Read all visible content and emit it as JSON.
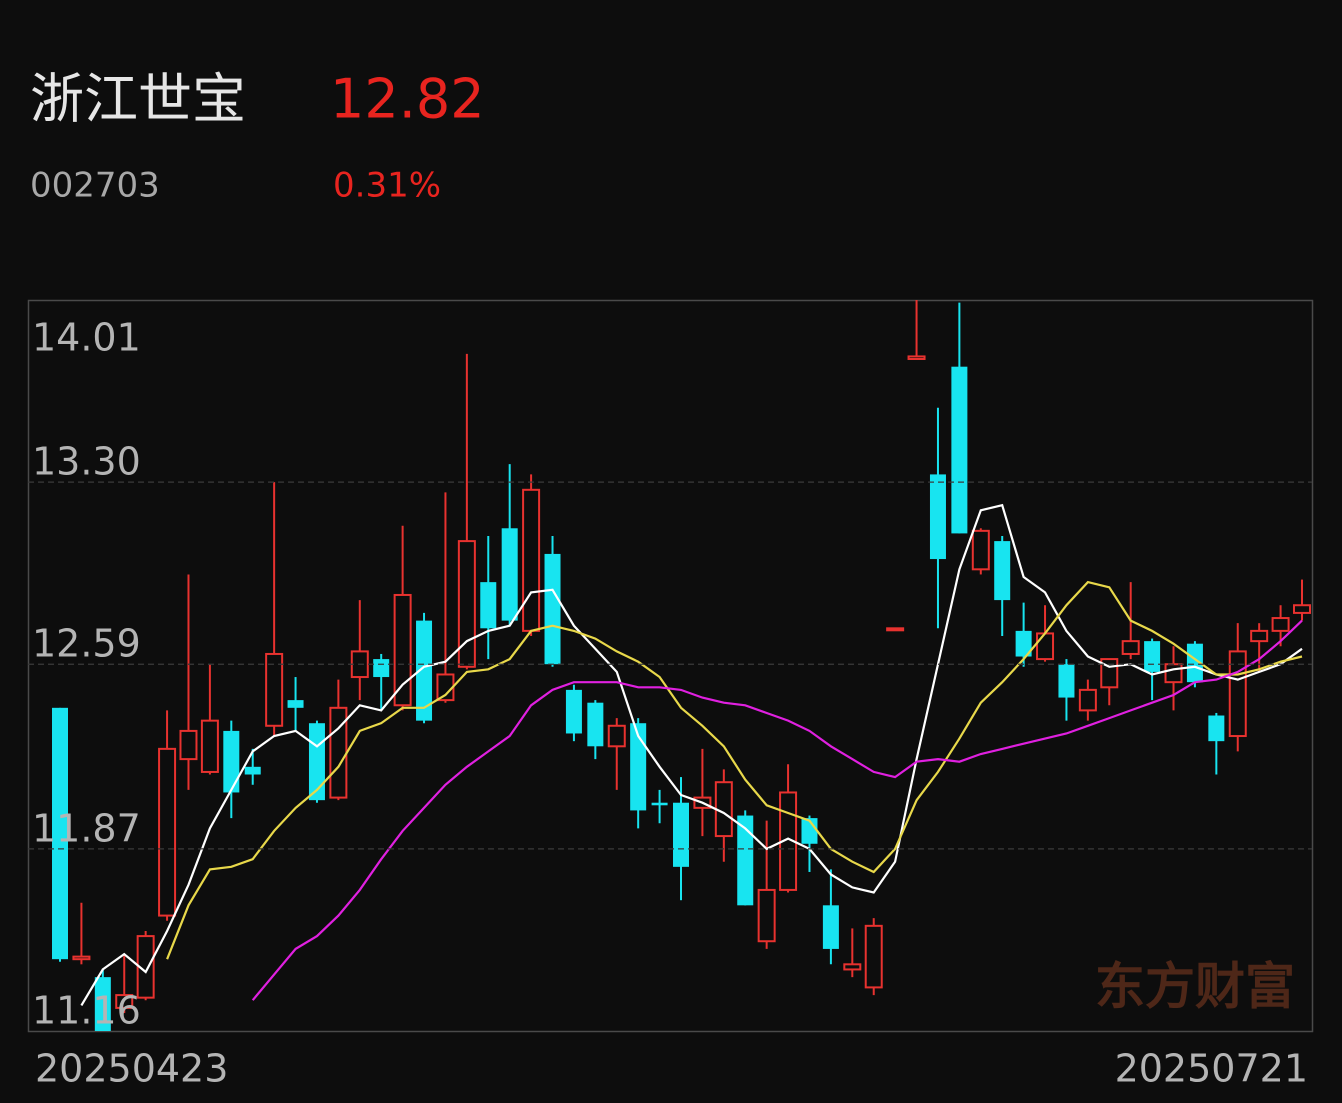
{
  "header": {
    "name": "浙江世宝",
    "price": 12.82,
    "code": "002703",
    "change": "0.31%"
  },
  "chart_data": {
    "type": "candlestick",
    "categories": [
      "20250423",
      null,
      null,
      null,
      null,
      null,
      null,
      null,
      null,
      null,
      null,
      null,
      null,
      null,
      null,
      null,
      null,
      null,
      null,
      null,
      null,
      null,
      null,
      null,
      null,
      null,
      null,
      null,
      null,
      null,
      null,
      null,
      null,
      null,
      null,
      null,
      null,
      null,
      null,
      null,
      null,
      null,
      null,
      null,
      null,
      null,
      null,
      null,
      null,
      null,
      null,
      null,
      null,
      null,
      null,
      null,
      null,
      null,
      "20250721"
    ],
    "open": [
      12.42,
      11.44,
      11.37,
      11.25,
      11.29,
      11.61,
      12.22,
      12.17,
      12.33,
      12.19,
      12.35,
      12.45,
      12.36,
      12.07,
      12.54,
      12.61,
      12.43,
      12.76,
      12.45,
      12.58,
      12.91,
      13.12,
      12.72,
      13.02,
      12.49,
      12.44,
      12.27,
      12.36,
      12.05,
      12.05,
      12.03,
      11.92,
      12.0,
      11.51,
      11.71,
      11.99,
      11.65,
      11.4,
      11.33,
      12.73,
      13.78,
      13.33,
      13.75,
      12.96,
      13.07,
      12.72,
      12.61,
      12.59,
      12.41,
      12.5,
      12.63,
      12.68,
      12.52,
      12.67,
      12.39,
      12.31,
      12.68,
      12.72,
      12.79
    ],
    "high": [
      12.42,
      11.66,
      11.4,
      11.46,
      11.55,
      12.41,
      12.94,
      12.59,
      12.37,
      12.26,
      13.3,
      12.54,
      12.37,
      12.53,
      12.84,
      12.63,
      13.13,
      12.79,
      13.26,
      13.8,
      13.09,
      13.37,
      13.33,
      13.09,
      12.51,
      12.45,
      12.38,
      12.38,
      12.1,
      12.15,
      12.26,
      12.18,
      12.02,
      11.98,
      12.2,
      12.0,
      11.79,
      11.56,
      11.6,
      12.73,
      14.01,
      13.59,
      14.0,
      13.12,
      13.09,
      12.83,
      12.82,
      12.61,
      12.53,
      12.61,
      12.91,
      12.69,
      12.66,
      12.68,
      12.4,
      12.75,
      12.75,
      12.82,
      12.92
    ],
    "low": [
      11.43,
      11.42,
      11.1,
      11.23,
      11.28,
      11.59,
      12.1,
      12.16,
      11.99,
      12.12,
      12.31,
      12.33,
      12.05,
      12.06,
      12.45,
      12.41,
      12.41,
      12.36,
      12.44,
      12.57,
      12.61,
      12.74,
      12.7,
      12.58,
      12.29,
      12.22,
      12.1,
      11.95,
      11.97,
      11.67,
      11.92,
      11.82,
      11.65,
      11.48,
      11.7,
      11.78,
      11.42,
      11.37,
      11.3,
      12.73,
      13.78,
      12.73,
      13.1,
      12.94,
      12.7,
      12.58,
      12.6,
      12.37,
      12.37,
      12.43,
      12.61,
      12.45,
      12.41,
      12.5,
      12.16,
      12.25,
      12.56,
      12.66,
      12.76
    ],
    "close": [
      11.44,
      11.45,
      11.13,
      11.3,
      11.53,
      12.26,
      12.33,
      12.37,
      12.09,
      12.16,
      12.63,
      12.42,
      12.06,
      12.42,
      12.64,
      12.54,
      12.86,
      12.37,
      12.55,
      13.07,
      12.73,
      12.76,
      13.27,
      12.59,
      12.32,
      12.27,
      12.35,
      12.02,
      12.04,
      11.8,
      12.07,
      12.13,
      11.65,
      11.71,
      12.09,
      11.89,
      11.48,
      11.42,
      11.57,
      12.73,
      13.79,
      13.0,
      13.1,
      13.11,
      12.84,
      12.62,
      12.71,
      12.46,
      12.49,
      12.61,
      12.68,
      12.56,
      12.59,
      12.52,
      12.29,
      12.64,
      12.72,
      12.77,
      12.82
    ],
    "up_color": "#e8322f",
    "down_color": "#18e4f0",
    "series": [
      {
        "type": "line",
        "color": "#ffffff",
        "values": [
          null,
          11.26,
          11.4,
          11.46,
          11.39,
          11.55,
          11.73,
          11.95,
          12.1,
          12.25,
          12.31,
          12.33,
          12.27,
          12.34,
          12.43,
          12.41,
          12.51,
          12.58,
          12.6,
          12.68,
          12.72,
          12.74,
          12.87,
          12.88,
          12.74,
          12.65,
          12.56,
          12.31,
          12.19,
          12.08,
          12.05,
          12.01,
          11.95,
          11.87,
          11.91,
          11.87,
          11.77,
          11.72,
          11.7,
          11.82,
          12.22,
          12.59,
          12.96,
          13.19,
          13.21,
          12.93,
          12.87,
          12.72,
          12.62,
          12.58,
          12.59,
          12.55,
          12.57,
          12.58,
          12.55,
          12.53,
          12.56,
          12.59,
          12.65
        ]
      },
      {
        "type": "line",
        "color": "#e8d84a",
        "values": [
          null,
          null,
          null,
          null,
          null,
          11.44,
          11.65,
          11.79,
          11.8,
          11.83,
          11.94,
          12.03,
          12.1,
          12.19,
          12.33,
          12.36,
          12.42,
          12.42,
          12.47,
          12.56,
          12.57,
          12.61,
          12.72,
          12.74,
          12.72,
          12.69,
          12.64,
          12.6,
          12.54,
          12.42,
          12.35,
          12.27,
          12.14,
          12.04,
          12.01,
          11.98,
          11.87,
          11.82,
          11.78,
          11.87,
          12.06,
          12.17,
          12.3,
          12.44,
          12.52,
          12.61,
          12.71,
          12.82,
          12.91,
          12.89,
          12.76,
          12.72,
          12.67,
          12.61,
          12.55,
          12.55,
          12.57,
          12.6,
          12.62
        ]
      },
      {
        "type": "line",
        "color": "#e020e0",
        "values": [
          null,
          null,
          null,
          null,
          null,
          null,
          null,
          null,
          null,
          11.28,
          11.38,
          11.48,
          11.53,
          11.61,
          11.71,
          11.83,
          11.94,
          12.03,
          12.12,
          12.19,
          12.25,
          12.31,
          12.43,
          12.49,
          12.52,
          12.52,
          12.52,
          12.5,
          12.5,
          12.49,
          12.46,
          12.44,
          12.43,
          12.4,
          12.37,
          12.33,
          12.27,
          12.22,
          12.17,
          12.15,
          12.21,
          12.22,
          12.21,
          12.24,
          12.26,
          12.28,
          12.3,
          12.32,
          12.35,
          12.38,
          12.41,
          12.44,
          12.47,
          12.52,
          12.53,
          12.56,
          12.61,
          12.68,
          12.76
        ]
      }
    ],
    "ylim": [
      11.16,
      14.01
    ],
    "yticks": [
      14.01,
      {
        "value": 13.3,
        "label": "13.30"
      },
      12.59,
      11.87,
      11.16
    ],
    "grid": true,
    "watermark": "东方财富"
  }
}
